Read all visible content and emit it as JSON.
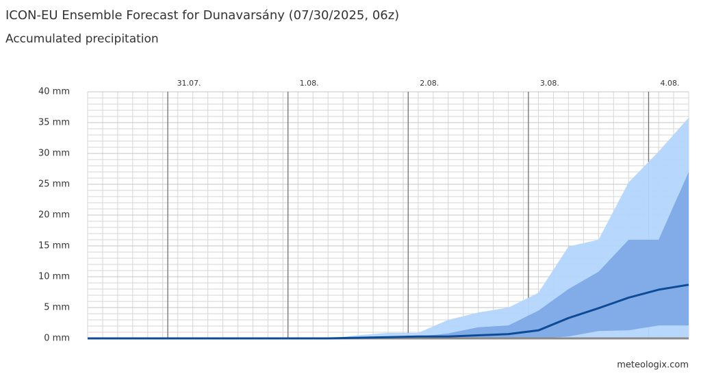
{
  "chart_data": {
    "type": "ensemble",
    "title": "ICON-EU Ensemble Forecast for Dunavarsány (07/30/2025, 06z)",
    "subtitle": "Accumulated precipitation",
    "source": "meteologix.com",
    "x": [
      0,
      6,
      12,
      18,
      24,
      30,
      36,
      42,
      48,
      54,
      60,
      66,
      72,
      78,
      84,
      90,
      96,
      102,
      108,
      114,
      120
    ],
    "xlim": [
      0,
      120
    ],
    "xticks": [
      {
        "value": 16,
        "label": "31.07."
      },
      {
        "value": 40,
        "label": "1.08."
      },
      {
        "value": 64,
        "label": "2.08."
      },
      {
        "value": 88,
        "label": "3.08."
      },
      {
        "value": 112,
        "label": "4.08."
      }
    ],
    "x_minor_step": 3,
    "ylim": [
      0,
      40
    ],
    "yticks": [
      {
        "value": 0,
        "label": "0 mm"
      },
      {
        "value": 5,
        "label": "5 mm"
      },
      {
        "value": 10,
        "label": "10 mm"
      },
      {
        "value": 15,
        "label": "15 mm"
      },
      {
        "value": 20,
        "label": "20 mm"
      },
      {
        "value": 25,
        "label": "25 mm"
      },
      {
        "value": 30,
        "label": "30 mm"
      },
      {
        "value": 35,
        "label": "35 mm"
      },
      {
        "value": 40,
        "label": "40 mm"
      }
    ],
    "y_minor_step": 1,
    "grid": true,
    "series": [
      {
        "color": "#8a8a8a",
        "values": [
          0,
          0,
          0,
          0,
          0,
          0,
          0,
          0,
          0,
          0,
          0,
          0,
          0,
          0,
          0,
          0,
          0,
          0,
          0,
          0,
          0
        ]
      },
      {
        "color": "#7eaae6",
        "values": [
          0,
          0,
          0,
          0,
          0,
          0,
          0,
          0,
          0,
          0,
          0,
          0,
          0,
          0,
          0,
          0,
          0.3,
          1.2,
          1.3,
          2.1,
          2.1
        ]
      },
      {
        "color": "#0d4b97",
        "values": [
          0,
          0,
          0,
          0,
          0,
          0,
          0,
          0,
          0,
          0.1,
          0.2,
          0.3,
          0.3,
          0.5,
          0.7,
          1.3,
          3.3,
          4.9,
          6.6,
          7.9,
          8.7
        ]
      },
      {
        "color": "#7eaae6",
        "values": [
          0,
          0,
          0,
          0,
          0,
          0,
          0,
          0,
          0,
          0.2,
          0.3,
          0.3,
          0.8,
          1.8,
          2.1,
          4.5,
          8.0,
          10.8,
          16.0,
          16.0,
          27.0
        ]
      },
      {
        "color": "#b4d5fc",
        "values": [
          0,
          0,
          0,
          0,
          0,
          0,
          0,
          0,
          0,
          0.5,
          0.9,
          0.9,
          3.0,
          4.2,
          5.0,
          7.4,
          14.9,
          16.0,
          25.3,
          30.3,
          35.8
        ]
      }
    ]
  }
}
